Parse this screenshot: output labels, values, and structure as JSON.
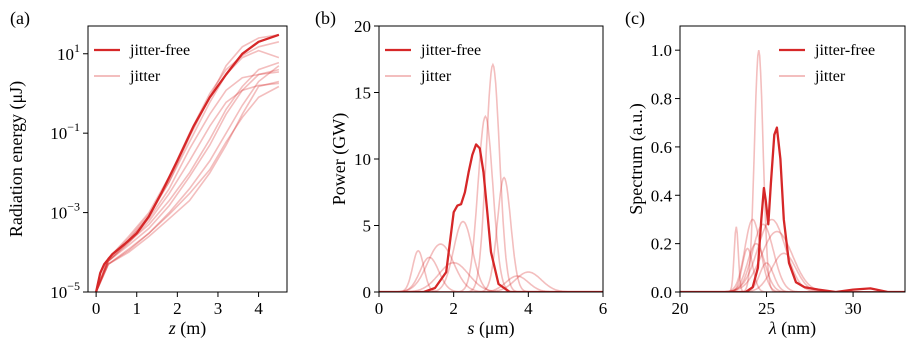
{
  "colors": {
    "jitter_free": "#d62728",
    "jitter": "#d62728"
  },
  "chart_data": [
    {
      "panel": "(a)",
      "type": "line",
      "xlabel_italic": "z",
      "xlabel_rest": " (m)",
      "ylabel": "Radiation energy (μJ)",
      "yscale": "log",
      "xlim": [
        -0.2,
        4.7
      ],
      "ylim": [
        1e-05,
        50
      ],
      "xticks": [
        0,
        1,
        2,
        3,
        4
      ],
      "yticks": [
        {
          "value": 1e-05,
          "base": "10",
          "exp": "−5"
        },
        {
          "value": 0.001,
          "base": "10",
          "exp": "−3"
        },
        {
          "value": 0.1,
          "base": "10",
          "exp": "−1"
        },
        {
          "value": 10,
          "base": "10",
          "exp": "1"
        }
      ],
      "legend": [
        "jitter-free",
        "jitter"
      ],
      "legend_placement": "upper-left",
      "series_main": {
        "name": "jitter-free",
        "x": [
          0,
          0.1,
          0.2,
          0.4,
          0.7,
          1.0,
          1.3,
          1.6,
          2.0,
          2.4,
          2.8,
          3.2,
          3.6,
          4.0,
          4.5
        ],
        "y": [
          1e-05,
          3e-05,
          5e-05,
          9e-05,
          0.00016,
          0.0003,
          0.0008,
          0.003,
          0.02,
          0.15,
          0.8,
          3,
          10,
          20,
          30
        ]
      },
      "series_jitter": [
        {
          "x": [
            0,
            0.3,
            0.8,
            1.3,
            1.8,
            2.3,
            2.8,
            3.2,
            3.6,
            4.0,
            4.5
          ],
          "y": [
            1e-05,
            7e-05,
            0.00025,
            0.001,
            0.008,
            0.1,
            1,
            4,
            9,
            15,
            20
          ]
        },
        {
          "x": [
            0,
            0.3,
            0.8,
            1.3,
            1.8,
            2.3,
            2.8,
            3.2,
            3.6,
            4.0,
            4.5
          ],
          "y": [
            1e-05,
            6e-05,
            0.0002,
            0.0008,
            0.006,
            0.08,
            0.8,
            5,
            15,
            25,
            30
          ]
        },
        {
          "x": [
            0,
            0.3,
            0.8,
            1.3,
            1.8,
            2.3,
            2.8,
            3.2,
            3.6,
            4.0,
            4.5
          ],
          "y": [
            1e-05,
            6e-05,
            0.00018,
            0.0005,
            0.002,
            0.01,
            0.07,
            0.4,
            1.5,
            4,
            6
          ]
        },
        {
          "x": [
            0,
            0.3,
            0.8,
            1.3,
            1.8,
            2.3,
            2.8,
            3.2,
            3.6,
            4.0,
            4.5
          ],
          "y": [
            1e-05,
            5e-05,
            0.00012,
            0.0003,
            0.001,
            0.004,
            0.02,
            0.1,
            0.5,
            2,
            5
          ]
        },
        {
          "x": [
            0,
            0.3,
            0.8,
            1.3,
            1.8,
            2.3,
            2.8,
            3.2,
            3.6,
            4.0,
            4.5
          ],
          "y": [
            1e-05,
            5e-05,
            0.0001,
            0.00025,
            0.0007,
            0.002,
            0.01,
            0.05,
            0.3,
            1.5,
            2
          ]
        },
        {
          "x": [
            0,
            0.3,
            0.8,
            1.3,
            1.8,
            2.3,
            2.8,
            3.2,
            3.6,
            4.0,
            4.5
          ],
          "y": [
            1e-05,
            6e-05,
            0.00015,
            0.0004,
            0.0015,
            0.008,
            0.05,
            0.3,
            1.2,
            3,
            4
          ]
        },
        {
          "x": [
            0,
            0.3,
            0.8,
            1.3,
            1.8,
            2.3,
            2.8,
            3.2,
            3.6,
            4.0,
            4.5
          ],
          "y": [
            1e-05,
            7e-05,
            0.0002,
            0.0007,
            0.004,
            0.04,
            0.3,
            1.2,
            2.5,
            3,
            3.5
          ]
        },
        {
          "x": [
            0,
            0.3,
            0.8,
            1.3,
            1.8,
            2.3,
            2.8,
            3.2,
            3.6,
            4.0,
            4.5
          ],
          "y": [
            1e-05,
            5e-05,
            0.00011,
            0.0003,
            0.0009,
            0.003,
            0.012,
            0.06,
            0.25,
            0.8,
            1.5
          ]
        },
        {
          "x": [
            0,
            0.3,
            0.8,
            1.3,
            1.8,
            2.3,
            2.8,
            3.2,
            3.6,
            4.0,
            4.5
          ],
          "y": [
            1e-05,
            6e-05,
            0.00017,
            0.0006,
            0.003,
            0.02,
            0.15,
            0.6,
            1.2,
            1.6,
            1.8
          ]
        },
        {
          "x": [
            0,
            0.3,
            0.8,
            1.3,
            1.8,
            2.3,
            2.8,
            3.2,
            3.6,
            4.0,
            4.5
          ],
          "y": [
            1e-05,
            7e-05,
            0.00022,
            0.0009,
            0.006,
            0.06,
            0.6,
            3,
            8,
            12,
            8
          ]
        }
      ]
    },
    {
      "panel": "(b)",
      "type": "line",
      "xlabel_italic": "s",
      "xlabel_rest": " (μm)",
      "ylabel": "Power (GW)",
      "xlim": [
        0,
        6
      ],
      "ylim": [
        0,
        20
      ],
      "xticks": [
        0,
        2,
        4,
        6
      ],
      "yticks": [
        0,
        5,
        10,
        15,
        20
      ],
      "legend": [
        "jitter-free",
        "jitter"
      ],
      "legend_placement": "upper-left",
      "series_main": {
        "name": "jitter-free",
        "x": [
          1.2,
          1.5,
          1.8,
          2.0,
          2.1,
          2.2,
          2.3,
          2.4,
          2.5,
          2.6,
          2.7,
          2.8,
          2.9,
          3.0,
          3.2,
          3.5
        ],
        "y": [
          0,
          0.3,
          1.5,
          6.0,
          6.5,
          6.6,
          7.5,
          9.0,
          10.3,
          11.1,
          10.8,
          9.0,
          6.0,
          3.0,
          0.6,
          0
        ]
      },
      "series_jitter_peaks": [
        {
          "c": 3.05,
          "a": 17.1,
          "w": 0.18
        },
        {
          "c": 2.85,
          "a": 13.2,
          "w": 0.2
        },
        {
          "c": 3.35,
          "a": 8.6,
          "w": 0.18
        },
        {
          "c": 2.25,
          "a": 5.3,
          "w": 0.25
        },
        {
          "c": 1.65,
          "a": 3.6,
          "w": 0.35
        },
        {
          "c": 1.05,
          "a": 3.1,
          "w": 0.15
        },
        {
          "c": 1.35,
          "a": 2.6,
          "w": 0.25
        },
        {
          "c": 4.0,
          "a": 1.5,
          "w": 0.35
        },
        {
          "c": 2.0,
          "a": 2.2,
          "w": 0.4
        },
        {
          "c": 3.7,
          "a": 1.2,
          "w": 0.3
        }
      ]
    },
    {
      "panel": "(c)",
      "type": "line",
      "xlabel_italic": "λ",
      "xlabel_rest": " (nm)",
      "ylabel": "Spectrum (a.u.)",
      "xlim": [
        20,
        33
      ],
      "ylim": [
        0,
        1.1
      ],
      "xticks": [
        20,
        25,
        30
      ],
      "yticks": [
        "0.0",
        "0.2",
        "0.4",
        "0.6",
        "0.8",
        "1.0"
      ],
      "legend": [
        "jitter-free",
        "jitter"
      ],
      "legend_placement": "upper-right",
      "series_main": {
        "name": "jitter-free",
        "x": [
          23.8,
          24.2,
          24.5,
          24.7,
          24.85,
          24.95,
          25.1,
          25.25,
          25.45,
          25.6,
          25.8,
          26.0,
          26.3,
          26.7,
          27.2,
          28,
          29,
          30,
          31,
          32
        ],
        "y": [
          0,
          0.02,
          0.1,
          0.3,
          0.43,
          0.38,
          0.28,
          0.45,
          0.65,
          0.68,
          0.55,
          0.3,
          0.12,
          0.04,
          0.02,
          0.01,
          0,
          0.01,
          0.015,
          0
        ]
      },
      "series_jitter_peaks": [
        {
          "c": 24.55,
          "a": 1.0,
          "w": 0.25
        },
        {
          "c": 23.25,
          "a": 0.27,
          "w": 0.12
        },
        {
          "c": 24.2,
          "a": 0.3,
          "w": 0.45
        },
        {
          "c": 25.3,
          "a": 0.3,
          "w": 0.8
        },
        {
          "c": 24.8,
          "a": 0.28,
          "w": 0.6
        },
        {
          "c": 25.6,
          "a": 0.25,
          "w": 0.9
        },
        {
          "c": 24.4,
          "a": 0.2,
          "w": 0.5
        },
        {
          "c": 26.0,
          "a": 0.16,
          "w": 0.7
        },
        {
          "c": 25.0,
          "a": 0.12,
          "w": 0.4
        },
        {
          "c": 23.9,
          "a": 0.18,
          "w": 0.3
        }
      ]
    }
  ]
}
